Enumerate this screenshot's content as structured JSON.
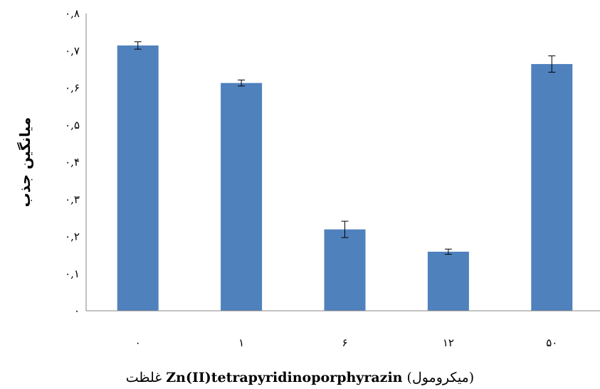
{
  "chart_data": {
    "type": "bar",
    "categories": [
      "٠",
      "١",
      "۶",
      "١٢",
      "۵٠"
    ],
    "values": [
      0.714,
      0.613,
      0.219,
      0.159,
      0.664
    ],
    "errors": [
      0.01,
      0.008,
      0.022,
      0.007,
      0.022
    ],
    "ylim": [
      0,
      0.8
    ],
    "yticks": [
      "٠",
      "٠,١",
      "٠,٢",
      "٠,٣",
      "٠,۴",
      "٠,۵",
      "٠,۶",
      "٠,٧",
      "٠,٨"
    ],
    "ylabel": "میانگین جذب",
    "xlabel_prefix": "غلظت ",
    "xlabel_bold": "Zn(II)tetrapyridinoporphyrazin",
    "xlabel_suffix": " (میکرومول)",
    "bar_color": "#4F81BD"
  }
}
